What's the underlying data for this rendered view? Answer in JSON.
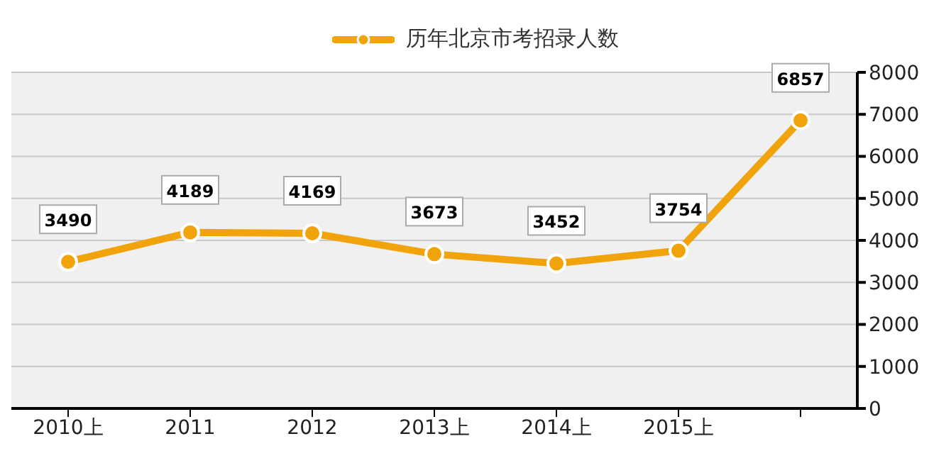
{
  "chart_data": {
    "type": "line",
    "categories": [
      "2010上",
      "2011",
      "2012",
      "2013上",
      "2014上",
      "2015上",
      null
    ],
    "series": [
      {
        "name": "历年北京市考招录人数",
        "color": "#f0a30a",
        "values": [
          3490,
          4189,
          4169,
          3673,
          3452,
          3754,
          6857
        ]
      }
    ],
    "ylim": [
      0,
      8000
    ],
    "yticks": [
      0,
      1000,
      2000,
      3000,
      4000,
      5000,
      6000,
      7000,
      8000
    ],
    "grid": "y",
    "legend": "top",
    "marker": "circle",
    "line_style": "solid",
    "data_labels": true
  }
}
